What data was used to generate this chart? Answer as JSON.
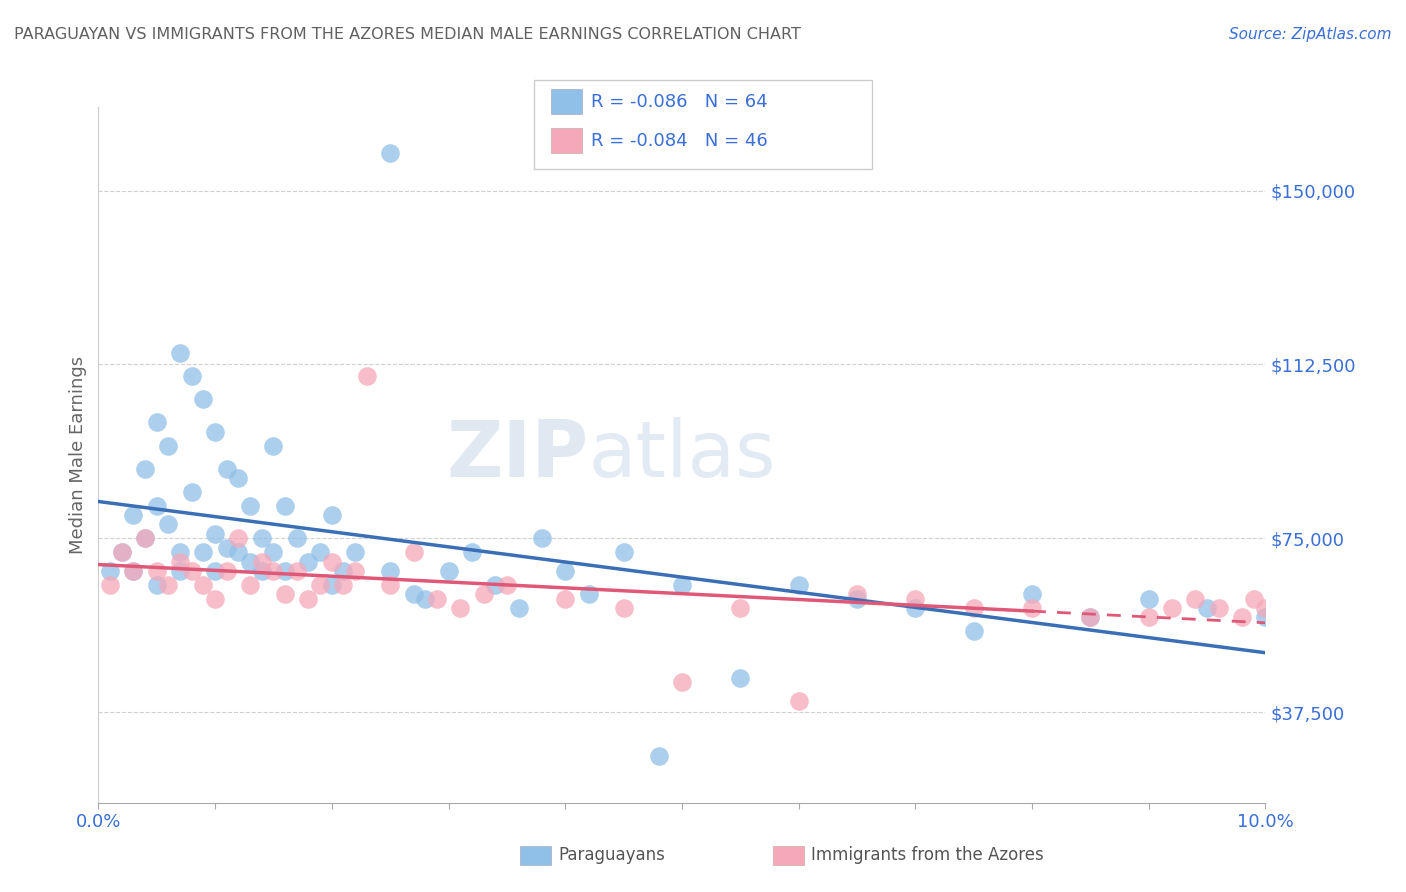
{
  "title": "PARAGUAYAN VS IMMIGRANTS FROM THE AZORES MEDIAN MALE EARNINGS CORRELATION CHART",
  "source": "Source: ZipAtlas.com",
  "ylabel": "Median Male Earnings",
  "background_color": "#ffffff",
  "grid_color": "#d0d0d0",
  "blue_color": "#90bfe8",
  "pink_color": "#f5a8b8",
  "blue_line_color": "#3a6fb5",
  "pink_line_color": "#e05878",
  "axis_label_color": "#3a6fd8",
  "title_color": "#606060",
  "source_color": "#3a6fd8",
  "watermark_zip": "ZIP",
  "watermark_atlas": "atlas",
  "legend_R1": "R = -0.086",
  "legend_N1": "N = 64",
  "legend_R2": "R = -0.084",
  "legend_N2": "N = 46",
  "legend_label1": "Paraguayans",
  "legend_label2": "Immigrants from the Azores",
  "xlim": [
    0.0,
    0.1
  ],
  "ylim": [
    18000,
    168000
  ],
  "yticks": [
    37500,
    75000,
    112500,
    150000
  ],
  "ytick_labels": [
    "$37,500",
    "$75,000",
    "$112,500",
    "$150,000"
  ],
  "xticks": [
    0.0,
    0.01,
    0.02,
    0.03,
    0.04,
    0.05,
    0.06,
    0.07,
    0.08,
    0.09,
    0.1
  ],
  "xtick_labels": [
    "0.0%",
    "",
    "",
    "",
    "",
    "",
    "",
    "",
    "",
    "",
    "10.0%"
  ],
  "blue_scatter_x": [
    0.001,
    0.002,
    0.003,
    0.003,
    0.004,
    0.004,
    0.005,
    0.005,
    0.005,
    0.006,
    0.006,
    0.007,
    0.007,
    0.007,
    0.008,
    0.008,
    0.009,
    0.009,
    0.01,
    0.01,
    0.01,
    0.011,
    0.011,
    0.012,
    0.012,
    0.013,
    0.013,
    0.014,
    0.014,
    0.015,
    0.015,
    0.016,
    0.016,
    0.017,
    0.018,
    0.019,
    0.02,
    0.02,
    0.021,
    0.022,
    0.025,
    0.025,
    0.027,
    0.028,
    0.03,
    0.032,
    0.034,
    0.036,
    0.038,
    0.04,
    0.042,
    0.045,
    0.048,
    0.05,
    0.055,
    0.06,
    0.065,
    0.07,
    0.075,
    0.08,
    0.085,
    0.09,
    0.095,
    0.1
  ],
  "blue_scatter_y": [
    68000,
    72000,
    80000,
    68000,
    90000,
    75000,
    100000,
    82000,
    65000,
    95000,
    78000,
    115000,
    72000,
    68000,
    110000,
    85000,
    105000,
    72000,
    98000,
    76000,
    68000,
    90000,
    73000,
    88000,
    72000,
    82000,
    70000,
    75000,
    68000,
    95000,
    72000,
    82000,
    68000,
    75000,
    70000,
    72000,
    80000,
    65000,
    68000,
    72000,
    158000,
    68000,
    63000,
    62000,
    68000,
    72000,
    65000,
    60000,
    75000,
    68000,
    63000,
    72000,
    28000,
    65000,
    45000,
    65000,
    62000,
    60000,
    55000,
    63000,
    58000,
    62000,
    60000,
    58000
  ],
  "pink_scatter_x": [
    0.001,
    0.002,
    0.003,
    0.004,
    0.005,
    0.006,
    0.007,
    0.008,
    0.009,
    0.01,
    0.011,
    0.012,
    0.013,
    0.014,
    0.015,
    0.016,
    0.017,
    0.018,
    0.019,
    0.02,
    0.021,
    0.022,
    0.023,
    0.025,
    0.027,
    0.029,
    0.031,
    0.033,
    0.035,
    0.04,
    0.045,
    0.05,
    0.055,
    0.06,
    0.065,
    0.07,
    0.075,
    0.08,
    0.085,
    0.09,
    0.092,
    0.094,
    0.096,
    0.098,
    0.099,
    0.1
  ],
  "pink_scatter_y": [
    65000,
    72000,
    68000,
    75000,
    68000,
    65000,
    70000,
    68000,
    65000,
    62000,
    68000,
    75000,
    65000,
    70000,
    68000,
    63000,
    68000,
    62000,
    65000,
    70000,
    65000,
    68000,
    110000,
    65000,
    72000,
    62000,
    60000,
    63000,
    65000,
    62000,
    60000,
    44000,
    60000,
    40000,
    63000,
    62000,
    60000,
    60000,
    58000,
    58000,
    60000,
    62000,
    60000,
    58000,
    62000,
    60000
  ]
}
